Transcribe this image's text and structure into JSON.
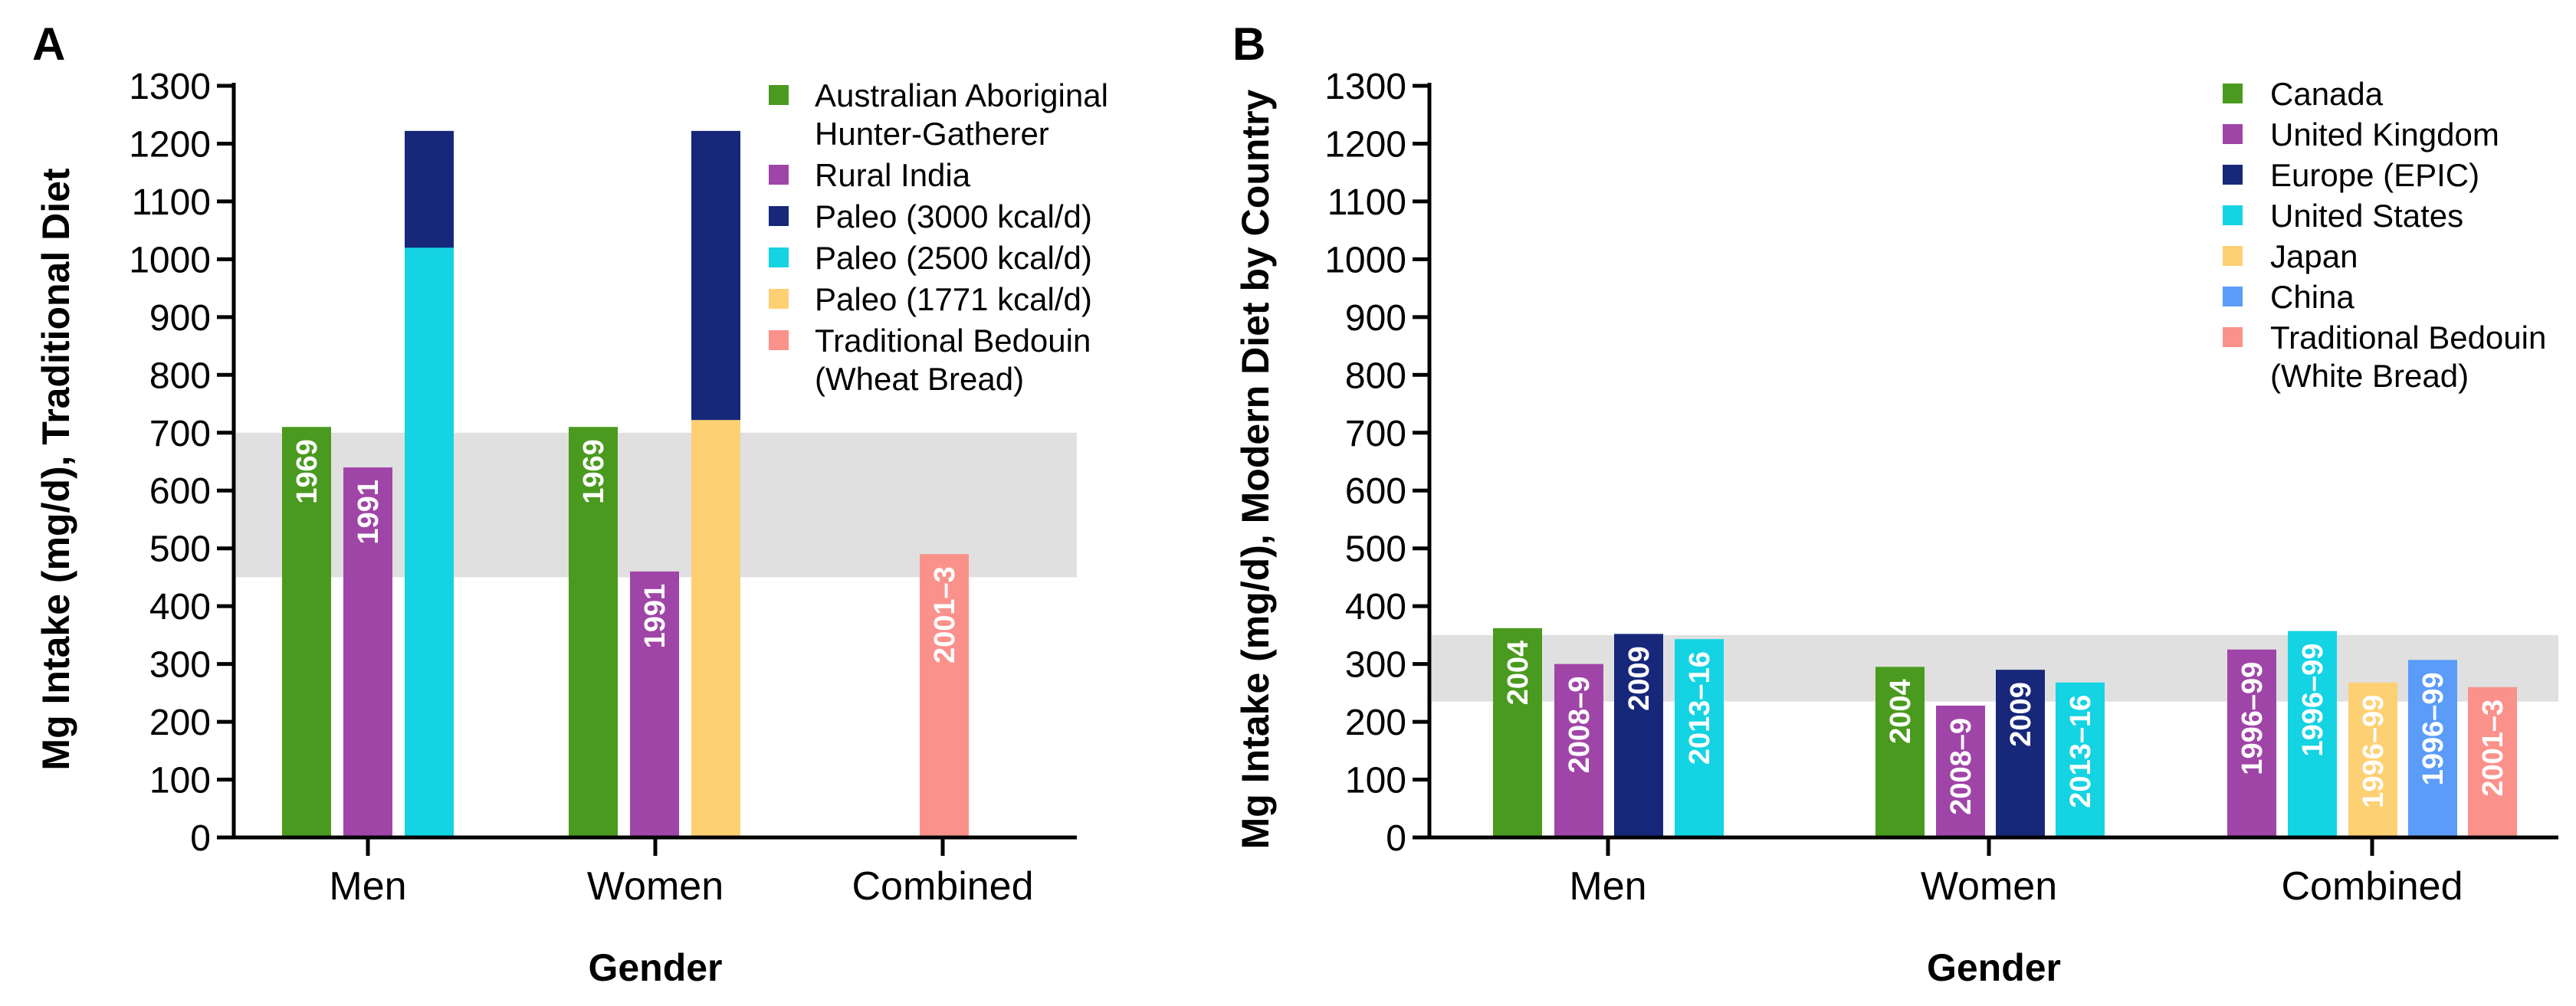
{
  "chart_data": [
    {
      "panel": "A",
      "type": "bar",
      "ylabel": "Mg Intake (mg/d), Traditional Diet",
      "xlabel": "Gender",
      "categories": [
        "Men",
        "Women",
        "Combined"
      ],
      "ylim": [
        0,
        1300
      ],
      "yticks": [
        0,
        100,
        200,
        300,
        400,
        500,
        600,
        700,
        800,
        900,
        1000,
        1100,
        1200,
        1300
      ],
      "reference_band": [
        450,
        700
      ],
      "legend": [
        {
          "name": "Australian Aboriginal Hunter-Gatherer",
          "lines": [
            "Australian Aboriginal",
            "Hunter-Gatherer"
          ],
          "color": "#4a9a1f"
        },
        {
          "name": "Rural India",
          "lines": [
            "Rural India"
          ],
          "color": "#a045a8"
        },
        {
          "name": "Paleo (3000 kcal/d)",
          "lines": [
            "Paleo (3000 kcal/d)"
          ],
          "color": "#17287a"
        },
        {
          "name": "Paleo (2500 kcal/d)",
          "lines": [
            "Paleo (2500 kcal/d)"
          ],
          "color": "#14d3e3"
        },
        {
          "name": "Paleo (1771 kcal/d)",
          "lines": [
            "Paleo (1771 kcal/d)"
          ],
          "color": "#fed074"
        },
        {
          "name": "Traditional Bedouin (Wheat Bread)",
          "lines": [
            "Traditional Bedouin",
            "(Wheat Bread)"
          ],
          "color": "#fb918b"
        }
      ],
      "bars": [
        {
          "category": "Men",
          "series": "Australian Aboriginal Hunter-Gatherer",
          "value": 710,
          "label": "1969",
          "color": "#4a9a1f"
        },
        {
          "category": "Men",
          "series": "Rural India",
          "value": 640,
          "label": "1991",
          "color": "#a045a8"
        },
        {
          "category": "Men",
          "series": "Paleo (2500 / 3000 kcal/d)",
          "segments": [
            {
              "series": "Paleo (2500 kcal/d)",
              "value": 1020,
              "color": "#14d3e3"
            },
            {
              "series": "Paleo (3000 kcal/d)",
              "value": 1222,
              "color": "#17287a"
            }
          ],
          "label": ""
        },
        {
          "category": "Women",
          "series": "Australian Aboriginal Hunter-Gatherer",
          "value": 710,
          "label": "1969",
          "color": "#4a9a1f"
        },
        {
          "category": "Women",
          "series": "Rural India",
          "value": 460,
          "label": "1991",
          "color": "#a045a8"
        },
        {
          "category": "Women",
          "series": "Paleo (1771 / 3000 kcal/d)",
          "segments": [
            {
              "series": "Paleo (1771 kcal/d)",
              "value": 722,
              "color": "#fed074"
            },
            {
              "series": "Paleo (3000 kcal/d)",
              "value": 1222,
              "color": "#17287a"
            }
          ],
          "label": ""
        },
        {
          "category": "Combined",
          "series": "Traditional Bedouin (Wheat Bread)",
          "value": 490,
          "label": "2001–3",
          "color": "#fb918b"
        }
      ]
    },
    {
      "panel": "B",
      "type": "bar",
      "ylabel": "Mg Intake (mg/d), Modern Diet by Country",
      "xlabel": "Gender",
      "categories": [
        "Men",
        "Women",
        "Combined"
      ],
      "ylim": [
        0,
        1300
      ],
      "yticks": [
        0,
        100,
        200,
        300,
        400,
        500,
        600,
        700,
        800,
        900,
        1000,
        1100,
        1200,
        1300
      ],
      "reference_band": [
        235,
        350
      ],
      "legend": [
        {
          "name": "Canada",
          "lines": [
            "Canada"
          ],
          "color": "#4a9a1f"
        },
        {
          "name": "United Kingdom",
          "lines": [
            "United Kingdom"
          ],
          "color": "#a045a8"
        },
        {
          "name": "Europe (EPIC)",
          "lines": [
            "Europe (EPIC)"
          ],
          "color": "#17287a"
        },
        {
          "name": "United States",
          "lines": [
            "United States"
          ],
          "color": "#14d3e3"
        },
        {
          "name": "Japan",
          "lines": [
            "Japan"
          ],
          "color": "#fed074"
        },
        {
          "name": "China",
          "lines": [
            "China"
          ],
          "color": "#5a9cf8"
        },
        {
          "name": "Traditional Bedouin (White Bread)",
          "lines": [
            "Traditional Bedouin",
            "(White Bread)"
          ],
          "color": "#fb918b"
        }
      ],
      "bars": [
        {
          "category": "Men",
          "series": "Canada",
          "value": 362,
          "label": "2004",
          "color": "#4a9a1f"
        },
        {
          "category": "Men",
          "series": "United Kingdom",
          "value": 300,
          "label": "2008–9",
          "color": "#a045a8"
        },
        {
          "category": "Men",
          "series": "Europe (EPIC)",
          "value": 352,
          "label": "2009",
          "color": "#17287a"
        },
        {
          "category": "Men",
          "series": "United States",
          "value": 343,
          "label": "2013–16",
          "color": "#14d3e3"
        },
        {
          "category": "Women",
          "series": "Canada",
          "value": 295,
          "label": "2004",
          "color": "#4a9a1f"
        },
        {
          "category": "Women",
          "series": "United Kingdom",
          "value": 228,
          "label": "2008–9",
          "color": "#a045a8"
        },
        {
          "category": "Women",
          "series": "Europe (EPIC)",
          "value": 290,
          "label": "2009",
          "color": "#17287a"
        },
        {
          "category": "Women",
          "series": "United States",
          "value": 268,
          "label": "2013–16",
          "color": "#14d3e3"
        },
        {
          "category": "Combined",
          "series": "United Kingdom",
          "value": 325,
          "label": "1996–99",
          "color": "#a045a8"
        },
        {
          "category": "Combined",
          "series": "United States",
          "value": 357,
          "label": "1996–99",
          "color": "#14d3e3"
        },
        {
          "category": "Combined",
          "series": "Japan",
          "value": 268,
          "label": "1996–99",
          "color": "#fed074"
        },
        {
          "category": "Combined",
          "series": "China",
          "value": 307,
          "label": "1996–99",
          "color": "#5a9cf8"
        },
        {
          "category": "Combined",
          "series": "Traditional Bedouin (White Bread)",
          "value": 260,
          "label": "2001–3",
          "color": "#fb918b"
        }
      ]
    }
  ],
  "band_color": "#e0e0e0"
}
